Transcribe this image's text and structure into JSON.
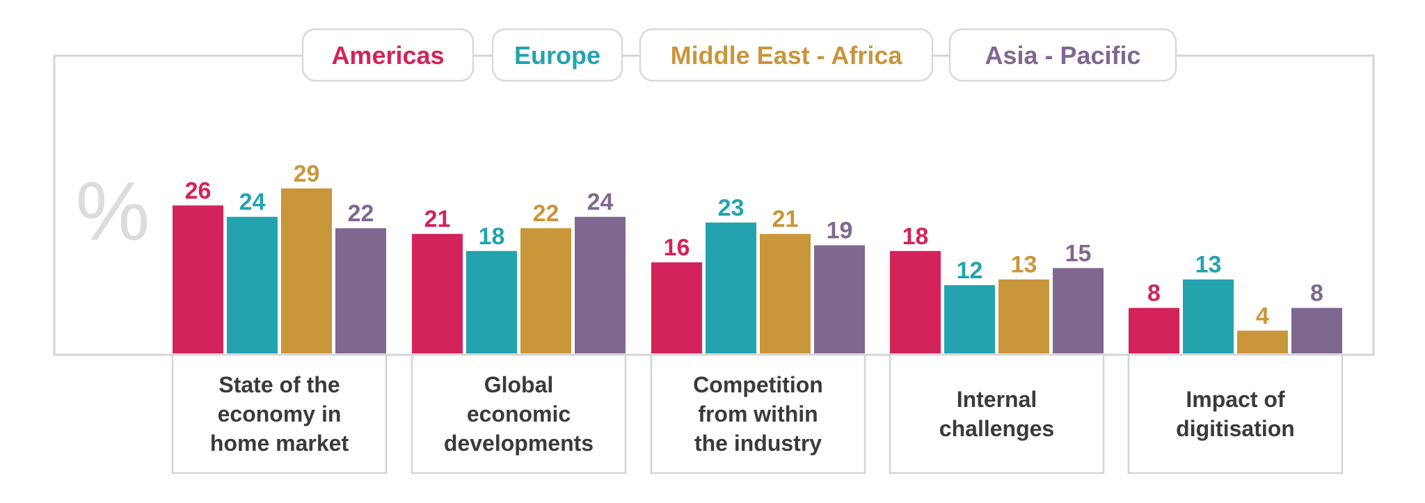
{
  "chart_data": {
    "type": "bar",
    "unit_label": "%",
    "categories": [
      [
        "State of the",
        "economy in",
        "home market"
      ],
      [
        "Global",
        "economic",
        "developments"
      ],
      [
        "Competition",
        "from within",
        "the industry"
      ],
      [
        "Internal",
        "challenges"
      ],
      [
        "Impact of",
        "digitisation"
      ]
    ],
    "series": [
      {
        "name": "Americas",
        "color": "#d4225a",
        "values": [
          26,
          21,
          16,
          18,
          8
        ]
      },
      {
        "name": "Europe",
        "color": "#22a3ae",
        "values": [
          24,
          18,
          23,
          12,
          13
        ]
      },
      {
        "name": "Middle East - Africa",
        "color": "#c9963a",
        "values": [
          29,
          22,
          21,
          13,
          4
        ]
      },
      {
        "name": "Asia - Pacific",
        "color": "#7f6890",
        "values": [
          22,
          24,
          19,
          15,
          8
        ]
      }
    ],
    "ylim": [
      0,
      35
    ],
    "legend_position": "top",
    "grid": false
  }
}
